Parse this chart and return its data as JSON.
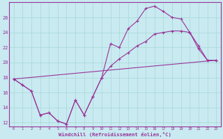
{
  "xlabel": "Windchill (Refroidissement éolien,°C)",
  "bg_color": "#c8eaf0",
  "line_color": "#993399",
  "grid_color": "#a8d8d8",
  "xlim": [
    -0.5,
    23.5
  ],
  "ylim": [
    11.5,
    28.0
  ],
  "yticks": [
    12,
    14,
    16,
    18,
    20,
    22,
    24,
    26
  ],
  "xticks": [
    0,
    1,
    2,
    3,
    4,
    5,
    6,
    7,
    8,
    9,
    10,
    11,
    12,
    13,
    14,
    15,
    16,
    17,
    18,
    19,
    20,
    21,
    22,
    23
  ],
  "line1_x": [
    0,
    1,
    2,
    3,
    4,
    5,
    6,
    7,
    8,
    9,
    10,
    11,
    12,
    13,
    14,
    15,
    16,
    17,
    18,
    19,
    20,
    21,
    22,
    23
  ],
  "line1_y": [
    17.8,
    17.0,
    16.2,
    13.0,
    13.3,
    12.2,
    11.8,
    15.0,
    13.0,
    15.5,
    18.0,
    22.5,
    22.0,
    24.5,
    25.5,
    27.2,
    27.5,
    26.8,
    26.0,
    25.8,
    24.0,
    21.8,
    20.3,
    20.3
  ],
  "line2_x": [
    0,
    23
  ],
  "line2_y": [
    17.8,
    20.3
  ],
  "line3_x": [
    0,
    1,
    2,
    3,
    4,
    5,
    6,
    7,
    8,
    9,
    10,
    11,
    12,
    13,
    14,
    15,
    16,
    17,
    18,
    19,
    20,
    21,
    22,
    23
  ],
  "line3_y": [
    17.8,
    17.0,
    16.2,
    13.0,
    13.3,
    12.2,
    11.8,
    15.0,
    13.0,
    15.5,
    18.0,
    19.5,
    20.5,
    21.3,
    22.2,
    22.8,
    23.8,
    24.0,
    24.2,
    24.2,
    24.0,
    22.2,
    20.3,
    20.3
  ]
}
